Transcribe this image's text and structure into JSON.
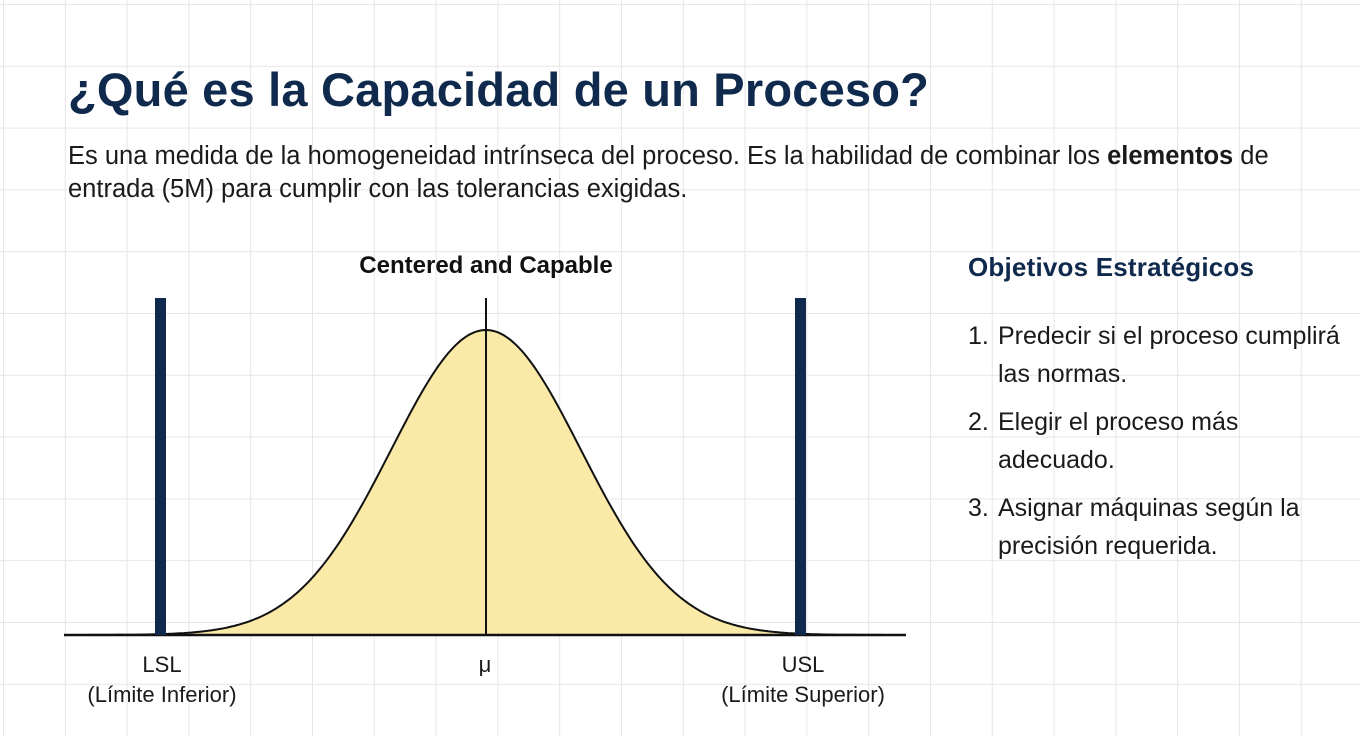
{
  "title": "¿Qué es la Capacidad de un Proceso?",
  "intro": {
    "part1": "Es una medida de la homogeneidad intrínseca del proceso. Es la habilidad de combinar los ",
    "bold": "elementos",
    "part2": " de entrada (5M) para cumplir con las tolerancias exigidas."
  },
  "chart": {
    "title": "Centered and Capable",
    "lsl_label": "LSL",
    "lsl_desc": "(Límite Inferior)",
    "mean_label": "μ",
    "usl_label": "USL",
    "usl_desc": "(Límite Superior)"
  },
  "chart_data": {
    "type": "area",
    "title": "Centered and Capable",
    "distribution": "normal",
    "x_labels": [
      "LSL",
      "μ",
      "USL"
    ],
    "specification_limits": [
      "LSL",
      "USL"
    ],
    "fill_color": "#fae9a7",
    "limit_color": "#0f2a4d"
  },
  "objectives": {
    "heading": "Objetivos Estratégicos",
    "items": [
      {
        "num": "1.",
        "text": "Predecir si el proceso cumplirá las normas."
      },
      {
        "num": "2.",
        "text": "Elegir el proceso más adecuado."
      },
      {
        "num": "3.",
        "text": "Asignar máquinas según la precisión requerida."
      }
    ]
  },
  "colors": {
    "heading": "#0f2a4d",
    "curve_fill": "#fae9a7",
    "limit_bar": "#0f2a4d",
    "grid": "#e6e6e6"
  }
}
